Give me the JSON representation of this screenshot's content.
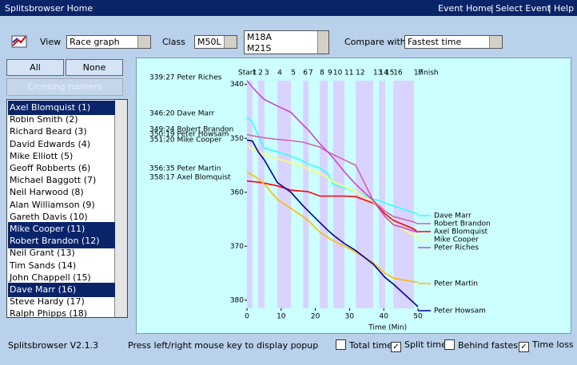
{
  "header": {
    "title": "Splitsbrowser Home",
    "links": [
      "Event Home",
      "Select Event",
      "Help"
    ]
  },
  "toolbar": {
    "view_label": "View",
    "view_value": "Race graph",
    "class_label": "Class",
    "class_value": "M50L",
    "courses": [
      "M18A",
      "M21S"
    ],
    "compare_label": "Compare with",
    "compare_value": "Fastest time"
  },
  "buttons": {
    "all": "All",
    "none": "None",
    "crossing": "Crossing runners"
  },
  "runners": [
    {
      "name": "Axel Blomquist  (1)",
      "selected": true
    },
    {
      "name": "Robin Smith  (2)",
      "selected": false
    },
    {
      "name": "Richard Beard  (3)",
      "selected": false
    },
    {
      "name": "David Edwards  (4)",
      "selected": false
    },
    {
      "name": "Mike Elliott  (5)",
      "selected": false
    },
    {
      "name": "Geoff Robberts  (6)",
      "selected": false
    },
    {
      "name": "Michael Baggott  (7)",
      "selected": false
    },
    {
      "name": "Neil Harwood  (8)",
      "selected": false
    },
    {
      "name": "Alan Williamson  (9)",
      "selected": false
    },
    {
      "name": "Gareth Davis  (10)",
      "selected": false
    },
    {
      "name": "Mike Cooper  (11)",
      "selected": true
    },
    {
      "name": "Robert Brandon  (12)",
      "selected": true
    },
    {
      "name": "Neil Grant  (13)",
      "selected": false
    },
    {
      "name": "Tim Sands  (14)",
      "selected": false
    },
    {
      "name": "John Chappell  (15)",
      "selected": false
    },
    {
      "name": "Dave Marr  (16)",
      "selected": true
    },
    {
      "name": "Steve Hardy  (17)",
      "selected": false
    },
    {
      "name": "Ralph Phipps  (18)",
      "selected": false
    }
  ],
  "chart_data": {
    "type": "line",
    "x_label": "Time (Min)",
    "x": [
      0,
      1.6,
      3.3,
      5.1,
      8.9,
      12.9,
      16.4,
      18,
      21.3,
      23.6,
      25.2,
      28.5,
      31.8,
      36.9,
      38.6,
      40.4,
      42.8,
      48.8,
      50
    ],
    "control_labels": [
      "Start",
      "1",
      "2",
      "3",
      "4",
      "5",
      "6",
      "7",
      "8",
      "9",
      "10",
      "11",
      "12",
      "13",
      "14",
      "15",
      "16",
      "17",
      "Finish"
    ],
    "xlim": [
      0,
      51
    ],
    "ylim": [
      339.3,
      381.5
    ],
    "y_inverted": true,
    "xticks": [
      0,
      10,
      20,
      30,
      40,
      50
    ],
    "yticks": [
      340,
      350,
      360,
      370,
      380
    ],
    "start_labels": [
      "339:27  Peter Riches",
      "346:20  Dave Marr",
      "349:24  Robert Brandon",
      "350:19  Peter Howsam",
      "351:20  Mike Cooper",
      "356:35  Peter Martin",
      "358:17  Axel Blomquist"
    ],
    "series": [
      {
        "name": "Dave Marr",
        "color": "#33ffff",
        "values": [
          346.1,
          347,
          349.5,
          351.8,
          352.5,
          353.3,
          354.2,
          354.8,
          355.5,
          356.5,
          358.5,
          359.2,
          359.8,
          361.3,
          361.5,
          362,
          362.5,
          363.8,
          364.1
        ]
      },
      {
        "name": "Robert Brandon",
        "color": "#cc66aa",
        "values": [
          349.3,
          349.5,
          349.7,
          349.9,
          350.2,
          350.4,
          350.7,
          351,
          351.6,
          352.5,
          353,
          354,
          355,
          361.5,
          362.5,
          363.5,
          364.5,
          365.5,
          365.9
        ]
      },
      {
        "name": "Axel Blomquist",
        "color": "#ff0000",
        "values": [
          357.9,
          358,
          358.1,
          358.3,
          358.8,
          359.6,
          359.8,
          359.9,
          360.7,
          360.7,
          360.7,
          360.7,
          360.8,
          362,
          362.8,
          364,
          365.2,
          366.8,
          367.4
        ]
      },
      {
        "name": "Mike Cooper",
        "color": "#ffff66",
        "values": [
          351.3,
          352,
          352.5,
          353,
          353.8,
          354.5,
          355.2,
          355.8,
          356.5,
          357.3,
          358,
          359,
          359.8,
          361.8,
          363,
          364.5,
          365.8,
          368,
          368.3
        ]
      },
      {
        "name": "Peter Riches",
        "color": "#cc44cc",
        "values": [
          339.3,
          340.5,
          341.7,
          342.8,
          344,
          345.2,
          347.5,
          348.5,
          351,
          352.5,
          353.6,
          356.2,
          358.5,
          361.5,
          363,
          364.5,
          366,
          367.2,
          367.4
        ]
      },
      {
        "name": "Peter Martin",
        "color": "#ffbb00",
        "values": [
          356.3,
          356.8,
          357.5,
          358.5,
          361.3,
          363,
          364.5,
          365.3,
          367.4,
          368.3,
          369,
          370,
          371.1,
          373,
          374,
          375,
          375.9,
          376.6,
          376.6
        ]
      },
      {
        "name": "Peter Howsam",
        "color": "#000099",
        "values": [
          350.3,
          350.5,
          352.5,
          354,
          358.2,
          360,
          362.5,
          363.5,
          365.6,
          367,
          367.9,
          369.5,
          370.8,
          373.3,
          374.5,
          375.8,
          377,
          380.5,
          381.2
        ]
      }
    ]
  },
  "footer": {
    "version": "Splitsbrowser V2.1.3",
    "hint": "Press left/right mouse key to display popup",
    "checkboxes": [
      {
        "label": "Total time",
        "checked": false
      },
      {
        "label": "Split time",
        "checked": true
      },
      {
        "label": "Behind fastest",
        "checked": false
      },
      {
        "label": "Time loss",
        "checked": true
      }
    ]
  }
}
